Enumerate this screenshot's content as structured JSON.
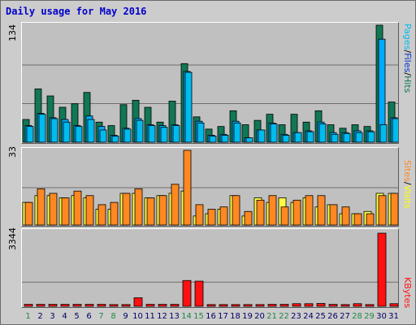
{
  "title": "Daily usage for May 2016",
  "colors": {
    "hits": "#117755",
    "files": "#00aaff",
    "pages": "#00bbee",
    "visits": "#ffff44",
    "sites": "#ff8822",
    "kbytes": "#ff1111",
    "weekend": "#228844",
    "weekday": "#000066",
    "grid": "#6e6e6e"
  },
  "labels": {
    "hits_panel_max": "134",
    "visits_panel_max": "33",
    "kbytes_panel_max": "3344",
    "pages": "Pages",
    "files": "Files",
    "hits": "Hits",
    "sites": "Sites",
    "visits": "Visits",
    "kbytes": "KBytes",
    "slash": "/"
  },
  "chart_data": {
    "type": "bar",
    "title": "Daily usage for May 2016",
    "categories": [
      "1",
      "2",
      "3",
      "4",
      "5",
      "6",
      "7",
      "8",
      "9",
      "10",
      "11",
      "12",
      "13",
      "14",
      "15",
      "16",
      "17",
      "18",
      "19",
      "20",
      "21",
      "22",
      "23",
      "24",
      "25",
      "26",
      "27",
      "28",
      "29",
      "30",
      "31"
    ],
    "weekend_days": [
      "1",
      "7",
      "8",
      "14",
      "15",
      "21",
      "22",
      "28",
      "29"
    ],
    "panels": [
      {
        "ymax": 134,
        "series": [
          {
            "name": "Hits",
            "values": [
              26,
              61,
              53,
              40,
              44,
              57,
              23,
              19,
              43,
              48,
              40,
              23,
              47,
              90,
              29,
              15,
              18,
              36,
              20,
              25,
              32,
              20,
              32,
              23,
              36,
              20,
              16,
              20,
              18,
              134,
              46
            ]
          },
          {
            "name": "Files",
            "values": [
              19,
              33,
              28,
              26,
              19,
              30,
              18,
              8,
              16,
              27,
              20,
              19,
              20,
              81,
              24,
              8,
              9,
              24,
              5,
              14,
              22,
              9,
              11,
              13,
              23,
              11,
              11,
              13,
              13,
              118,
              28
            ]
          },
          {
            "name": "Pages",
            "values": [
              18,
              32,
              27,
              23,
              18,
              26,
              14,
              7,
              15,
              25,
              19,
              17,
              19,
              80,
              22,
              7,
              8,
              22,
              5,
              14,
              21,
              8,
              11,
              12,
              21,
              9,
              10,
              11,
              12,
              20,
              27
            ]
          }
        ]
      },
      {
        "ymax": 33,
        "series": [
          {
            "name": "Visits",
            "values": [
              10,
              13,
              13,
              12,
              13,
              12,
              7,
              7,
              14,
              14,
              12,
              13,
              14,
              15,
              4,
              5,
              7,
              13,
              4,
              12,
              10,
              12,
              10,
              12,
              8,
              9,
              5,
              5,
              6,
              14,
              14
            ]
          },
          {
            "name": "Sites",
            "values": [
              10,
              16,
              14,
              12,
              15,
              13,
              9,
              10,
              14,
              16,
              12,
              13,
              18,
              33,
              9,
              7,
              8,
              13,
              6,
              11,
              13,
              8,
              11,
              13,
              13,
              9,
              8,
              5,
              5,
              13,
              14
            ]
          }
        ]
      },
      {
        "ymax": 3344,
        "series": [
          {
            "name": "KBytes",
            "values": [
              90,
              90,
              90,
              90,
              90,
              90,
              90,
              80,
              80,
              390,
              90,
              90,
              90,
              1180,
              1150,
              80,
              80,
              80,
              80,
              80,
              90,
              90,
              120,
              120,
              130,
              90,
              80,
              120,
              80,
              3344,
              120
            ]
          }
        ]
      }
    ]
  }
}
